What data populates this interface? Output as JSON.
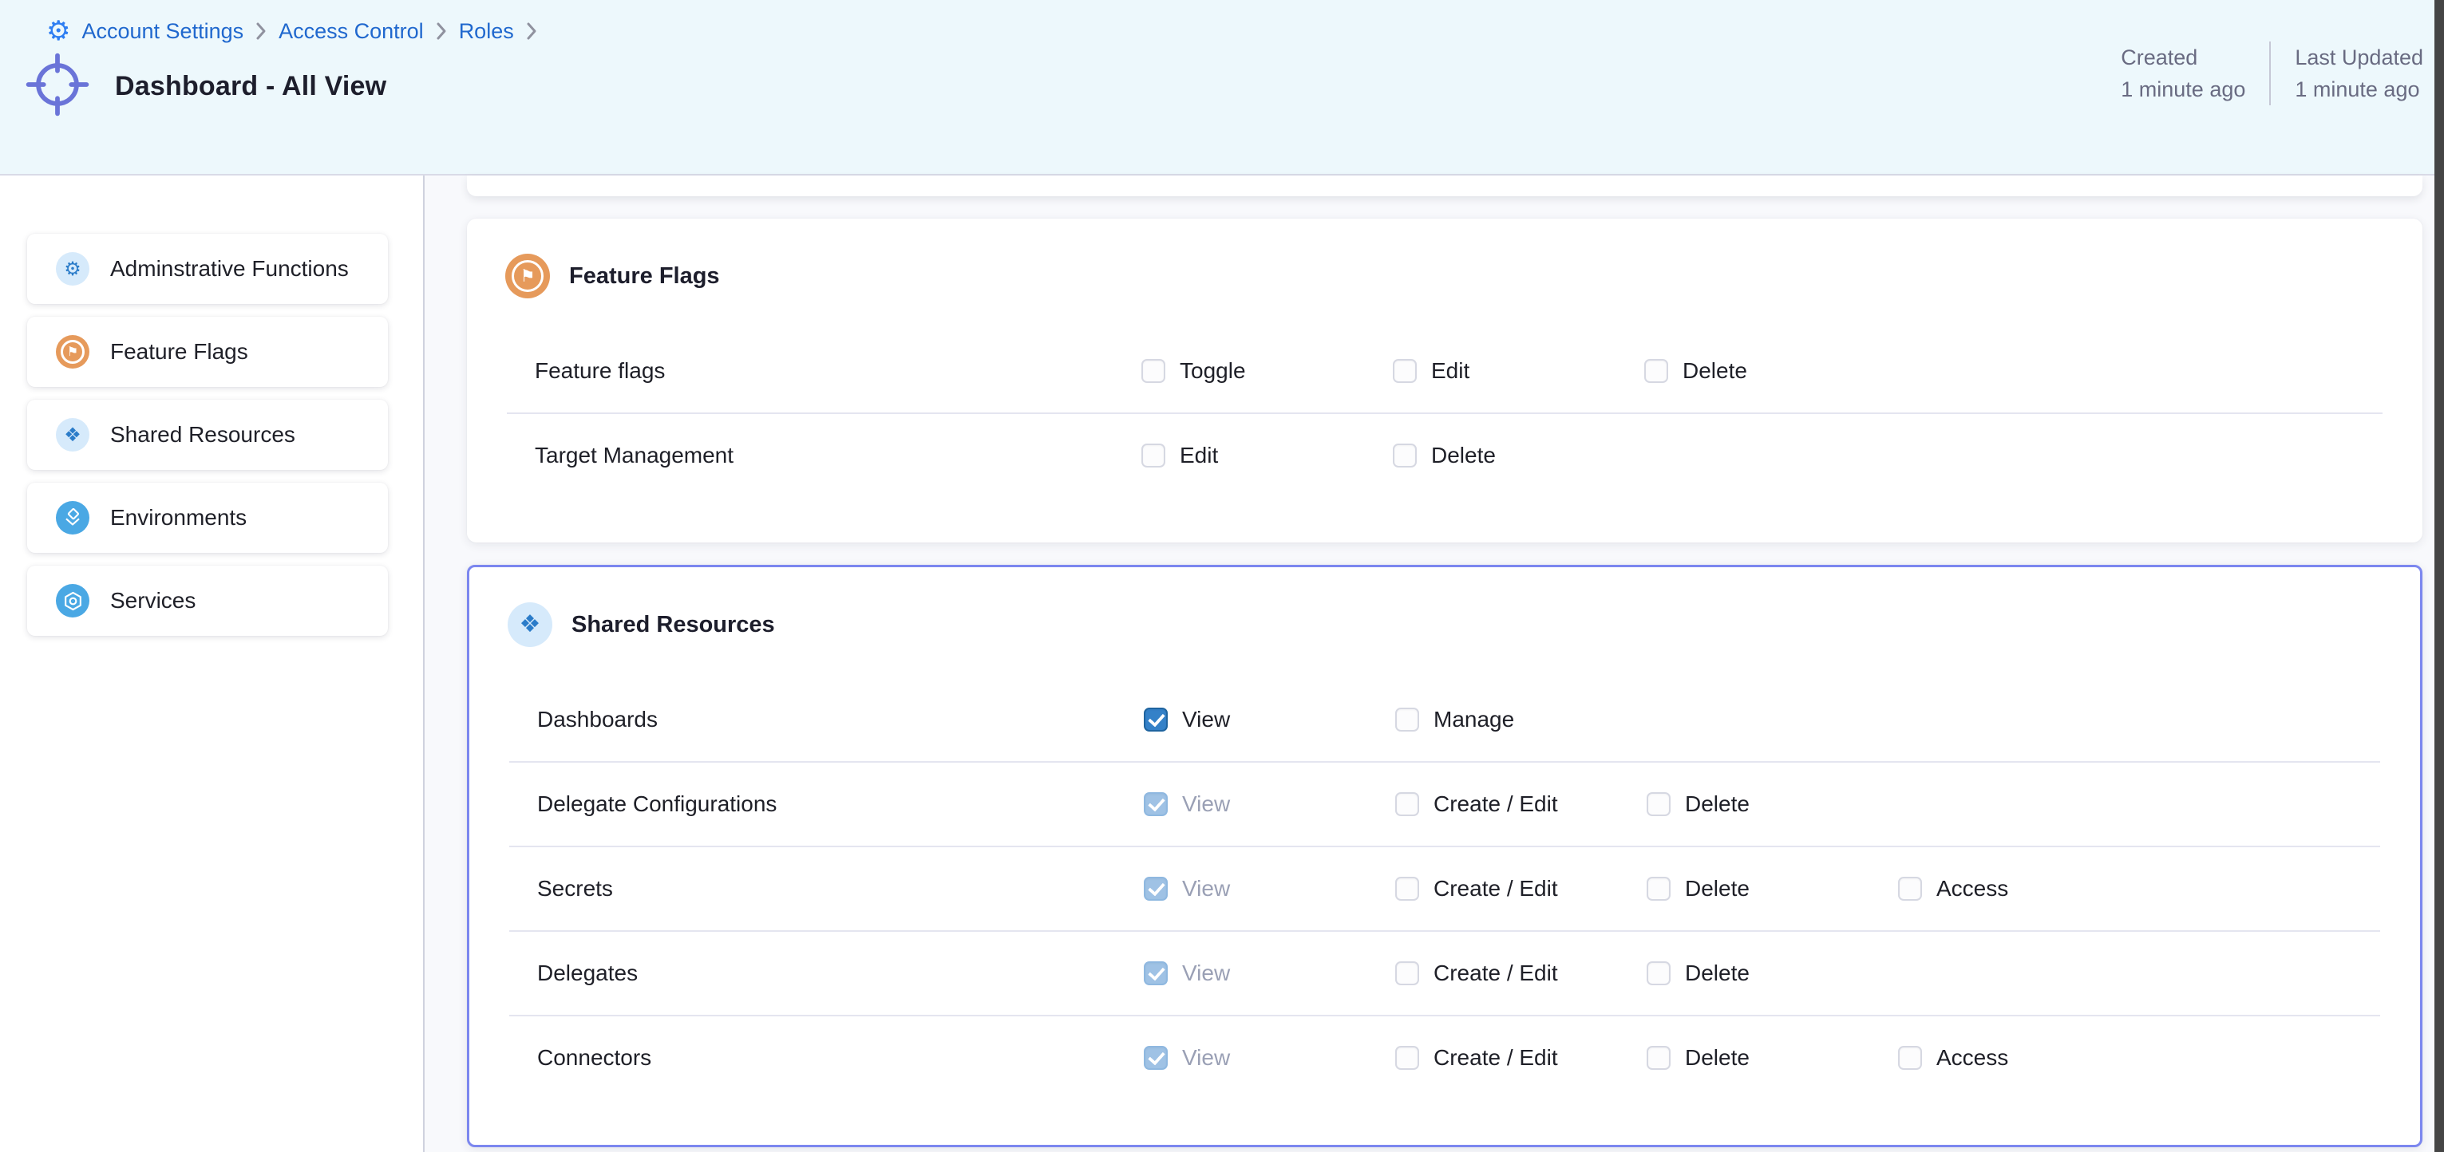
{
  "page": {
    "title": "Dashboard - All View"
  },
  "breadcrumb": {
    "items": [
      "Account Settings",
      "Access Control",
      "Roles"
    ]
  },
  "meta": {
    "created_label": "Created",
    "created_value": "1 minute ago",
    "updated_label": "Last Updated",
    "updated_value": "1 minute ago"
  },
  "sidebar": {
    "items": [
      {
        "label": "Adminstrative Functions",
        "icon": "gear-icon",
        "circle": "light-blue"
      },
      {
        "label": "Feature Flags",
        "icon": "flag-icon",
        "circle": "orange"
      },
      {
        "label": "Shared Resources",
        "icon": "diamonds-icon",
        "circle": "light-blue"
      },
      {
        "label": "Environments",
        "icon": "layers-icon",
        "circle": "blue"
      },
      {
        "label": "Services",
        "icon": "hexagon-icon",
        "circle": "blue"
      }
    ]
  },
  "permission_groups": [
    {
      "title": "Feature Flags",
      "icon": "flag-icon",
      "circle": "orange",
      "highlighted": false,
      "rows": [
        {
          "label": "Feature flags",
          "permissions": [
            {
              "label": "Toggle",
              "checked": false,
              "disabled": false
            },
            {
              "label": "Edit",
              "checked": false,
              "disabled": false
            },
            {
              "label": "Delete",
              "checked": false,
              "disabled": false
            }
          ]
        },
        {
          "label": "Target Management",
          "permissions": [
            {
              "label": "Edit",
              "checked": false,
              "disabled": false
            },
            {
              "label": "Delete",
              "checked": false,
              "disabled": false
            }
          ]
        }
      ]
    },
    {
      "title": "Shared Resources",
      "icon": "diamonds-icon",
      "circle": "light-blue",
      "highlighted": true,
      "rows": [
        {
          "label": "Dashboards",
          "permissions": [
            {
              "label": "View",
              "checked": true,
              "disabled": false
            },
            {
              "label": "Manage",
              "checked": false,
              "disabled": false
            }
          ]
        },
        {
          "label": "Delegate Configurations",
          "permissions": [
            {
              "label": "View",
              "checked": true,
              "disabled": true
            },
            {
              "label": "Create / Edit",
              "checked": false,
              "disabled": false
            },
            {
              "label": "Delete",
              "checked": false,
              "disabled": false
            }
          ]
        },
        {
          "label": "Secrets",
          "permissions": [
            {
              "label": "View",
              "checked": true,
              "disabled": true
            },
            {
              "label": "Create / Edit",
              "checked": false,
              "disabled": false
            },
            {
              "label": "Delete",
              "checked": false,
              "disabled": false
            },
            {
              "label": "Access",
              "checked": false,
              "disabled": false
            }
          ]
        },
        {
          "label": "Delegates",
          "permissions": [
            {
              "label": "View",
              "checked": true,
              "disabled": true
            },
            {
              "label": "Create / Edit",
              "checked": false,
              "disabled": false
            },
            {
              "label": "Delete",
              "checked": false,
              "disabled": false
            }
          ]
        },
        {
          "label": "Connectors",
          "permissions": [
            {
              "label": "View",
              "checked": true,
              "disabled": true
            },
            {
              "label": "Create / Edit",
              "checked": false,
              "disabled": false
            },
            {
              "label": "Delete",
              "checked": false,
              "disabled": false
            },
            {
              "label": "Access",
              "checked": false,
              "disabled": false
            }
          ]
        }
      ]
    }
  ],
  "colors": {
    "header_background": "#edf8fc",
    "breadcrumb_link": "#2068ce",
    "checked_checkbox": "#3481c8",
    "disabled_checked_checkbox": "#9fc2e5",
    "highlight_card_border": "#7c87ef",
    "feature_flags_orange": "#e69a5b",
    "resource_icon_blue": "#4aa8e4",
    "light_icon_circle": "#d6eafb"
  }
}
